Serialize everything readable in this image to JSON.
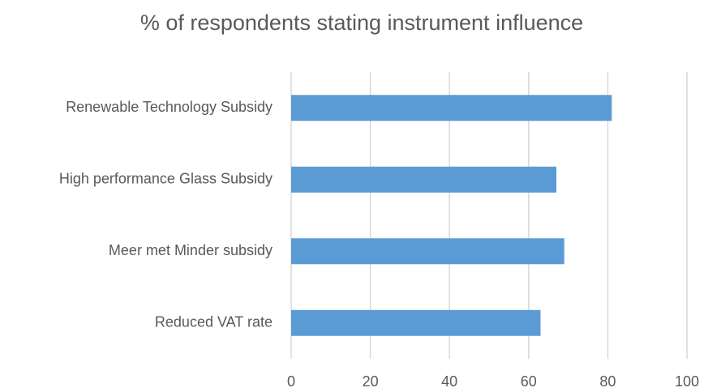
{
  "chart_data": {
    "type": "hbar",
    "title": "% of respondents stating instrument influence",
    "categories": [
      "Renewable Technology Subsidy",
      "High performance Glass Subsidy",
      "Meer met Minder subsidy",
      "Reduced VAT rate"
    ],
    "values": [
      81,
      67,
      69,
      63
    ],
    "color": "#5b9bd5",
    "xlim": [
      0,
      100
    ],
    "xticks": [
      0,
      20,
      40,
      60,
      80,
      100
    ],
    "grid": true
  }
}
